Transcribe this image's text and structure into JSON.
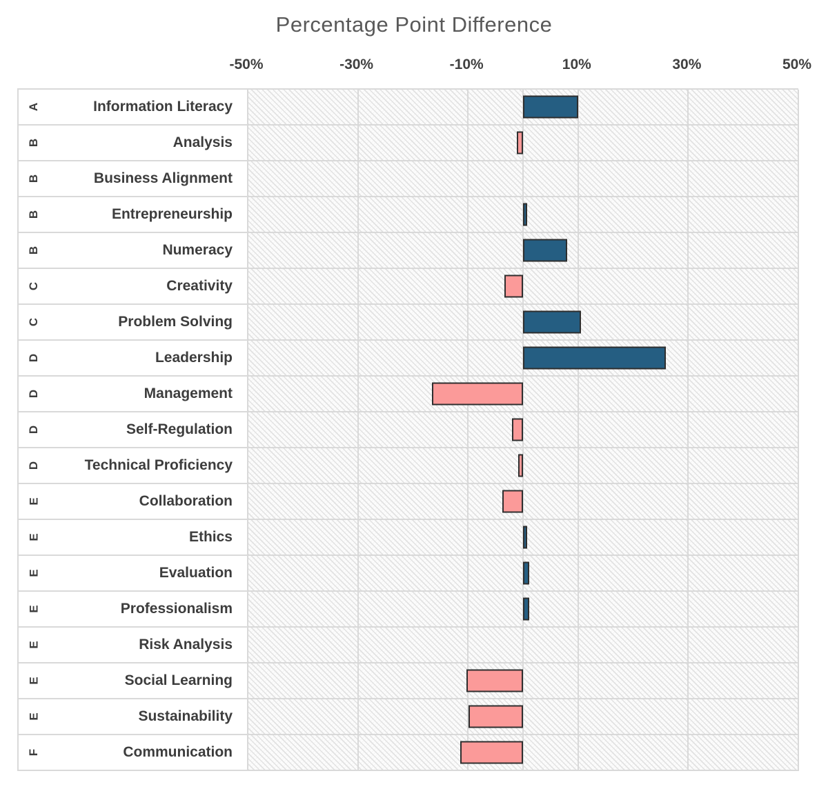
{
  "chart_data": {
    "type": "bar",
    "orientation": "horizontal",
    "title": "Percentage Point Difference",
    "x_ticks": [
      "-50%",
      "-30%",
      "-10%",
      "10%",
      "30%",
      "50%"
    ],
    "x_tick_values": [
      -50,
      -30,
      -10,
      10,
      30,
      50
    ],
    "xlim": [
      -50,
      50
    ],
    "grid": "vertical-gridlines-every-20pp-plus-zero-axis",
    "plot_background": "light-diagonal-hatch",
    "legend": "none",
    "categories": [
      "Information Literacy",
      "Analysis",
      "Business Alignment",
      "Entrepreneurship",
      "Numeracy",
      "Creativity",
      "Problem Solving",
      "Leadership",
      "Management",
      "Self-Regulation",
      "Technical Proficiency",
      "Collaboration",
      "Ethics",
      "Evaluation",
      "Professionalism",
      "Risk Analysis",
      "Social Learning",
      "Sustainability",
      "Communication"
    ],
    "groups": [
      "A",
      "B",
      "B",
      "B",
      "B",
      "C",
      "C",
      "D",
      "D",
      "D",
      "D",
      "E",
      "E",
      "E",
      "E",
      "E",
      "E",
      "E",
      "F"
    ],
    "values": [
      9.5,
      -0.6,
      0,
      0.3,
      7.5,
      -2.9,
      10,
      25.5,
      -16,
      -1.5,
      -0.4,
      -3.3,
      0.3,
      0.6,
      0.6,
      0,
      -9.8,
      -9.4,
      -10.9
    ],
    "colors": {
      "positive_bar": "#255e82",
      "negative_bar": "#fb9a99",
      "bar_border": "#2e2e2e",
      "gridline": "#d9d9d9",
      "title_text": "#595959",
      "axis_text": "#404040",
      "label_text": "#3d3d3d"
    }
  }
}
